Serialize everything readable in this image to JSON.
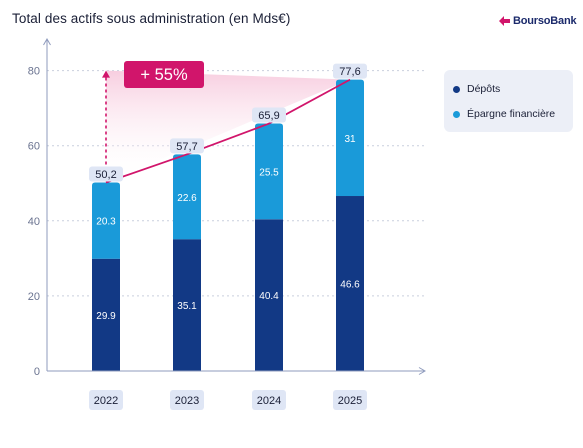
{
  "header": {
    "title": "Total des actifs sous administration (en Mds€)",
    "brand": "BoursoBank"
  },
  "colors": {
    "depots": "#123985",
    "epargne": "#1a9ad9",
    "accent": "#d1156b",
    "axis": "#8f9bbd",
    "label_bg": "#dfe6f5",
    "text_dark": "#1a1f36"
  },
  "annotation": {
    "growth": "+ 55%"
  },
  "chart_data": {
    "type": "bar",
    "stacked": true,
    "categories": [
      "2022",
      "2023",
      "2024",
      "2025"
    ],
    "series": [
      {
        "name": "Dépôts",
        "values": [
          29.9,
          35.1,
          40.4,
          46.6
        ],
        "labels": [
          "29.9",
          "35.1",
          "40.4",
          "46.6"
        ],
        "color": "#123985"
      },
      {
        "name": "Épargne financière",
        "values": [
          20.3,
          22.6,
          25.5,
          31
        ],
        "labels": [
          "20.3",
          "22.6",
          "25.5",
          "31"
        ],
        "color": "#1a9ad9"
      }
    ],
    "totals": [
      50.2,
      57.7,
      65.9,
      77.6
    ],
    "total_labels": [
      "50,2",
      "57,7",
      "65,9",
      "77,6"
    ],
    "title": "Total des actifs sous administration (en Mds€)",
    "yticks": [
      0,
      20,
      40,
      60,
      80
    ],
    "ylim": [
      0,
      90
    ],
    "grid": true,
    "legend_position": "right"
  }
}
